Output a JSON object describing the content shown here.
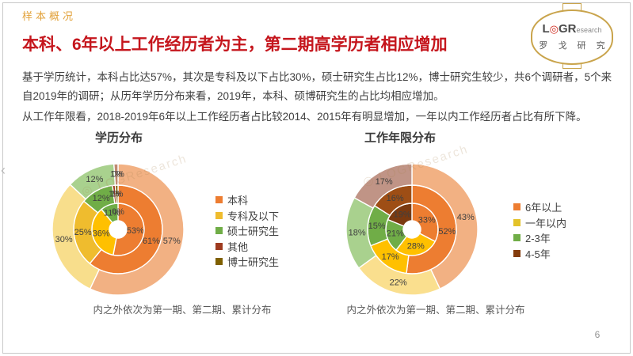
{
  "header": {
    "kicker": "样本概况",
    "title": "本科、6年以上工作经历者为主，第二期高学历者相应增加"
  },
  "body": {
    "paragraph1": "基于学历统计，本科占比达57%，其次是专科及以下占比30%，硕士研究生占比12%，博士研究生较少，共6个调研者，5个来自2019年的调研；从历年学历分布来看，2019年，本科、硕博研究生的占比均相应增加。",
    "paragraph2": "从工作年限看，2018-2019年6年以上工作经历者占比较2014、2015年有明显增加，一年以内工作经历者占比有所下降。"
  },
  "logo": {
    "part1": "L",
    "o_glyph": "◎",
    "part2": "GR",
    "part3": "esearch",
    "cn": "罗 戈 研 究",
    "border_color": "#C9A44C"
  },
  "watermark_text": "◎ LOGResearch",
  "nav": {
    "prev_glyph": "‹"
  },
  "footer": {
    "page_number": "6"
  },
  "colors": {
    "title_red": "#C5161D",
    "kicker_orange": "#E2A23B",
    "label_gray": "#404040"
  },
  "chart_data": [
    {
      "type": "pie",
      "subtype": "nested-donut",
      "title": "学历分布",
      "caption": "内之外依次为第一期、第二期、累计分布",
      "note": "rings from inner to outer = 第一期, 第二期, 累计分布",
      "legend_position": "right",
      "legend": [
        {
          "label": "本科",
          "color": "#ED7D31"
        },
        {
          "label": "专科及以下",
          "color": "#EFBC2E"
        },
        {
          "label": "硕士研究生",
          "color": "#70AD47"
        },
        {
          "label": "其他",
          "color": "#9E3B1F"
        },
        {
          "label": "博士研究生",
          "color": "#7F6000"
        }
      ],
      "rings": [
        {
          "name": "第一期",
          "position": "inner",
          "values": [
            53,
            36,
            11,
            0,
            0
          ],
          "labels": [
            "53%",
            "36%",
            "11%",
            "0%",
            ""
          ],
          "colors": [
            "#ED7D31",
            "#FFC000",
            "#70AD47",
            "#9E3B1F",
            "#7F6000"
          ]
        },
        {
          "name": "第二期",
          "position": "middle",
          "values": [
            61,
            25,
            12,
            1,
            1
          ],
          "labels": [
            "61%",
            "25%",
            "12%",
            "1%",
            "1%"
          ],
          "colors": [
            "#ED7D31",
            "#EFBC2E",
            "#70AD47",
            "#9E3B1F",
            "#7F6000"
          ]
        },
        {
          "name": "累计分布",
          "position": "outer",
          "values": [
            57,
            30,
            12,
            1,
            0
          ],
          "labels": [
            "57%",
            "30%",
            "12%",
            "1%",
            "0%"
          ],
          "colors": [
            "#F2B183",
            "#F8DE8C",
            "#A9D18E",
            "#C08A72",
            "#BFA86A"
          ]
        }
      ]
    },
    {
      "type": "pie",
      "subtype": "nested-donut",
      "title": "工作年限分布",
      "caption": "内之外依次为第一期、第二期、累计分布",
      "note": "rings from inner to outer = 第一期, 第二期, 累计分布",
      "legend_position": "right",
      "legend": [
        {
          "label": "6年以上",
          "color": "#ED7D31"
        },
        {
          "label": "一年以内",
          "color": "#E3C229"
        },
        {
          "label": "2-3年",
          "color": "#70AD47"
        },
        {
          "label": "4-5年",
          "color": "#843C0C"
        }
      ],
      "rings": [
        {
          "name": "第一期",
          "position": "inner",
          "values": [
            33,
            28,
            21,
            19
          ],
          "labels": [
            "33%",
            "28%",
            "21%",
            "19%"
          ],
          "colors": [
            "#ED7D31",
            "#FFC000",
            "#70AD47",
            "#7B3A10"
          ]
        },
        {
          "name": "第二期",
          "position": "middle",
          "values": [
            52,
            17,
            15,
            16
          ],
          "labels": [
            "52%",
            "17%",
            "15%",
            "16%"
          ],
          "colors": [
            "#ED7D31",
            "#FFC000",
            "#70AD47",
            "#9E4E15"
          ]
        },
        {
          "name": "累计分布",
          "position": "outer",
          "values": [
            43,
            22,
            18,
            17
          ],
          "labels": [
            "43%",
            "22%",
            "18%",
            "17%"
          ],
          "colors": [
            "#F2B183",
            "#FADF8E",
            "#A9D18E",
            "#C09486"
          ]
        }
      ]
    }
  ]
}
